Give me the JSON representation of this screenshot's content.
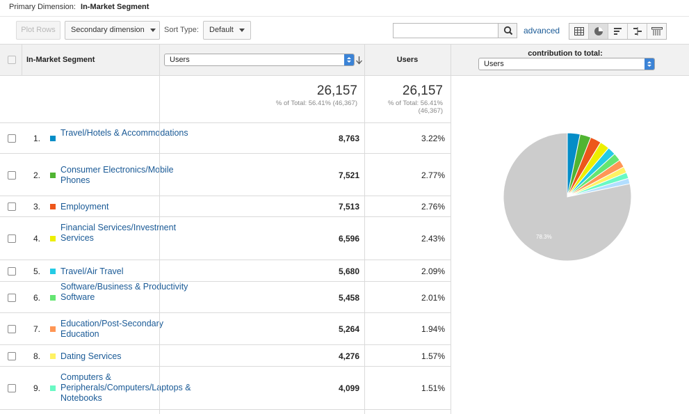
{
  "primary": {
    "label": "Primary Dimension:",
    "value": "In-Market Segment"
  },
  "toolbar": {
    "plot_rows": "Plot Rows",
    "secondary_dimension": "Secondary dimension",
    "sort_type_label": "Sort Type:",
    "sort_type_value": "Default",
    "search_value": "",
    "advanced": "advanced"
  },
  "table": {
    "dimension_header": "In-Market Segment",
    "metric_select": "Users",
    "users_header": "Users",
    "contribution_header": "contribution to total:",
    "contribution_select": "Users",
    "totals": {
      "metric_value": "26,157",
      "metric_pct": "% of Total: 56.41% (46,367)",
      "users_value": "26,157",
      "users_pct_line1": "% of Total: 56.41%",
      "users_pct_line2": "(46,367)"
    },
    "rows": [
      {
        "num": "1.",
        "name": "Travel/Hotels & Accommodations",
        "users": "8,763",
        "pct": "3.22%",
        "color": "#058dc7"
      },
      {
        "num": "2.",
        "name": "Consumer Electronics/Mobile Phones",
        "users": "7,521",
        "pct": "2.77%",
        "color": "#50b432"
      },
      {
        "num": "3.",
        "name": "Employment",
        "users": "7,513",
        "pct": "2.76%",
        "color": "#ed561b"
      },
      {
        "num": "4.",
        "name": "Financial Services/Investment Services",
        "users": "6,596",
        "pct": "2.43%",
        "color": "#edef00"
      },
      {
        "num": "5.",
        "name": "Travel/Air Travel",
        "users": "5,680",
        "pct": "2.09%",
        "color": "#24cbe5"
      },
      {
        "num": "6.",
        "name": "Software/Business & Productivity Software",
        "users": "5,458",
        "pct": "2.01%",
        "color": "#64e572"
      },
      {
        "num": "7.",
        "name": "Education/Post-Secondary Education",
        "users": "5,264",
        "pct": "1.94%",
        "color": "#ff9655"
      },
      {
        "num": "8.",
        "name": "Dating Services",
        "users": "4,276",
        "pct": "1.57%",
        "color": "#fff263"
      },
      {
        "num": "9.",
        "name": "Computers & Peripherals/Computers/Laptops & Notebooks",
        "users": "4,099",
        "pct": "1.51%",
        "color": "#6af9c4"
      }
    ]
  },
  "chart_data": {
    "type": "pie",
    "slices": [
      {
        "label": "Travel/Hotels & Accommodations",
        "value": 3.22,
        "color": "#058dc7"
      },
      {
        "label": "Consumer Electronics/Mobile Phones",
        "value": 2.77,
        "color": "#50b432"
      },
      {
        "label": "Employment",
        "value": 2.76,
        "color": "#ed561b"
      },
      {
        "label": "Financial Services/Investment Services",
        "value": 2.43,
        "color": "#edef00"
      },
      {
        "label": "Travel/Air Travel",
        "value": 2.09,
        "color": "#24cbe5"
      },
      {
        "label": "Software/Business & Productivity Software",
        "value": 2.01,
        "color": "#64e572"
      },
      {
        "label": "Education/Post-Secondary Education",
        "value": 1.94,
        "color": "#ff9655"
      },
      {
        "label": "Dating Services",
        "value": 1.57,
        "color": "#fff263"
      },
      {
        "label": "Computers & Peripherals/Computers/Laptops & Notebooks",
        "value": 1.51,
        "color": "#6af9c4"
      },
      {
        "label": "",
        "value": 1.4,
        "color": "#b2deff"
      },
      {
        "label": "Other",
        "value": 78.3,
        "color": "#cccccc"
      }
    ],
    "other_label": "78.3%"
  }
}
